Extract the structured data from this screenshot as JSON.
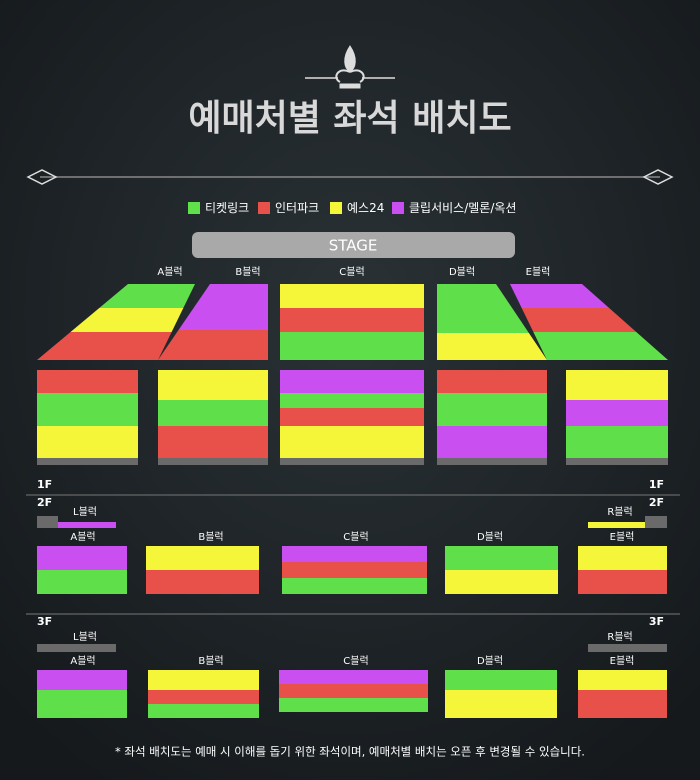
{
  "title": "예매처별 좌석 배치도",
  "legend": [
    {
      "label": "티켓링크",
      "color": "#5fe04a"
    },
    {
      "label": "인터파크",
      "color": "#e8504a"
    },
    {
      "label": "예스24",
      "color": "#f5f53a"
    },
    {
      "label": "클립서비스/멜론/옥션",
      "color": "#c94ff0"
    }
  ],
  "stage": "STAGE",
  "floor1": {
    "label": "1F",
    "blocks": [
      "A블럭",
      "B블럭",
      "C블럭",
      "D블럭",
      "E블럭"
    ]
  },
  "floor2": {
    "label": "2F",
    "side": [
      "L블럭",
      "R블럭"
    ],
    "blocks": [
      "A블럭",
      "B블럭",
      "C블럭",
      "D블럭",
      "E블럭"
    ]
  },
  "floor3": {
    "label": "3F",
    "side": [
      "L블럭",
      "R블럭"
    ],
    "blocks": [
      "A블럭",
      "B블럭",
      "C블럭",
      "D블럭",
      "E블럭"
    ]
  },
  "footnote": "* 좌석 배치도는 예매 시 이해를 돕기 위한 좌석이며, 예매처별 배치는 오픈 후 변경될 수 있습니다."
}
